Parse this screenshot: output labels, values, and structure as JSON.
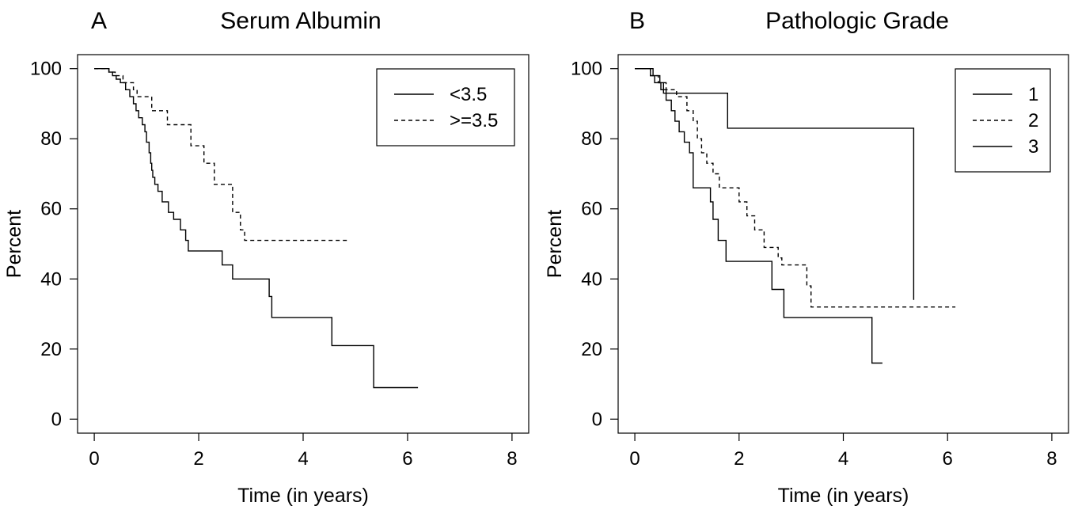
{
  "chart_data": [
    {
      "type": "line",
      "step": true,
      "panel": "A",
      "title": "Serum Albumin",
      "xlabel": "Time (in years)",
      "ylabel": "Percent",
      "xlim": [
        0,
        8
      ],
      "ylim": [
        0,
        100
      ],
      "xticks": [
        0,
        2,
        4,
        6,
        8
      ],
      "yticks": [
        0,
        20,
        40,
        60,
        80,
        100
      ],
      "grid": false,
      "legend_position": "top-right",
      "series": [
        {
          "name": "<3.5",
          "style": "solid",
          "x": [
            0,
            0.28,
            0.35,
            0.42,
            0.5,
            0.6,
            0.68,
            0.75,
            0.8,
            0.85,
            0.92,
            0.97,
            1.0,
            1.05,
            1.08,
            1.1,
            1.12,
            1.16,
            1.22,
            1.3,
            1.42,
            1.52,
            1.65,
            1.75,
            1.8,
            2.45,
            2.65,
            3.35,
            3.4,
            4.55,
            5.35,
            6.2
          ],
          "y": [
            100,
            99,
            98,
            97,
            96,
            94,
            92,
            90,
            88,
            86,
            84,
            82,
            79,
            76,
            73,
            71,
            69,
            67,
            65,
            62,
            59,
            57,
            54,
            51,
            48,
            44,
            40,
            35,
            29,
            21,
            9,
            9
          ]
        },
        {
          "name": ">=3.5",
          "style": "dashed",
          "x": [
            0,
            0.28,
            0.4,
            0.55,
            0.75,
            0.82,
            1.1,
            1.4,
            1.85,
            2.1,
            2.3,
            2.65,
            2.8,
            2.88,
            4.85
          ],
          "y": [
            100,
            99,
            98,
            96,
            94,
            92,
            88,
            84,
            78,
            73,
            67,
            59,
            54,
            51,
            51
          ]
        }
      ]
    },
    {
      "type": "line",
      "step": true,
      "panel": "B",
      "title": "Pathologic Grade",
      "xlabel": "Time (in years)",
      "ylabel": "Percent",
      "xlim": [
        0,
        8
      ],
      "ylim": [
        0,
        100
      ],
      "xticks": [
        0,
        2,
        4,
        6,
        8
      ],
      "yticks": [
        0,
        20,
        40,
        60,
        80,
        100
      ],
      "grid": false,
      "legend_position": "top-right",
      "series": [
        {
          "name": "1",
          "style": "solid",
          "x": [
            0,
            0.35,
            0.48,
            0.55,
            0.65,
            1.78,
            5.35
          ],
          "y": [
            100,
            98,
            96,
            93,
            93,
            83,
            34
          ]
        },
        {
          "name": "2",
          "style": "dashed",
          "x": [
            0,
            0.3,
            0.45,
            0.6,
            0.8,
            1.0,
            1.12,
            1.2,
            1.28,
            1.38,
            1.5,
            1.62,
            1.85,
            2.0,
            2.15,
            2.3,
            2.48,
            2.6,
            2.75,
            2.82,
            3.3,
            3.38,
            6.15
          ],
          "y": [
            100,
            98,
            96,
            94,
            92,
            88,
            85,
            80,
            76,
            73,
            70,
            66,
            66,
            62,
            58,
            54,
            49,
            49,
            46,
            44,
            38,
            32,
            32
          ]
        },
        {
          "name": "3",
          "style": "solid",
          "x": [
            0,
            0.3,
            0.38,
            0.5,
            0.6,
            0.7,
            0.77,
            0.85,
            0.95,
            1.05,
            1.12,
            1.45,
            1.5,
            1.6,
            1.75,
            2.63,
            2.86,
            4.55,
            4.75
          ],
          "y": [
            100,
            98,
            96,
            94,
            91,
            88,
            85,
            82,
            79,
            76,
            66,
            62,
            57,
            51,
            45,
            37,
            29,
            16,
            16
          ]
        }
      ]
    }
  ]
}
